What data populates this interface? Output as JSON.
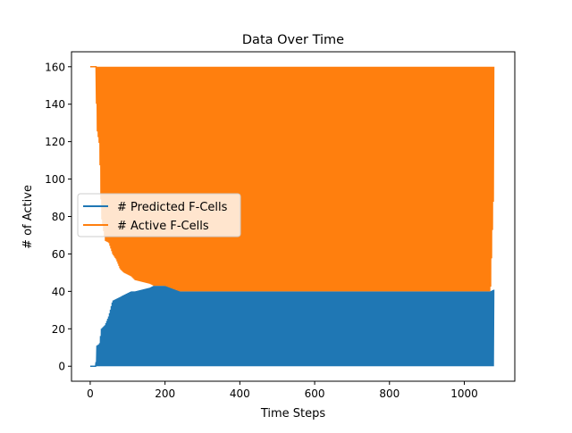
{
  "chart_data": {
    "type": "line",
    "title": "Data Over Time",
    "xlabel": "Time Steps",
    "ylabel": "# of Active",
    "xlim": [
      -50,
      1135
    ],
    "ylim": [
      -8,
      168
    ],
    "xticks": [
      0,
      200,
      400,
      600,
      800,
      1000
    ],
    "yticks": [
      0,
      20,
      40,
      60,
      80,
      100,
      120,
      140,
      160
    ],
    "legend_position": "center-left",
    "grid": false,
    "series": [
      {
        "name": "# Predicted F-Cells",
        "color": "#1f77b4",
        "description_points": {
          "x": [
            0,
            15,
            18,
            25,
            30,
            40,
            50,
            60,
            70,
            80,
            90,
            100,
            110,
            120,
            140,
            160,
            170,
            180,
            200,
            240,
            300,
            400,
            500,
            600,
            700,
            800,
            900,
            1000,
            1070,
            1080
          ],
          "y_high": [
            0,
            0,
            11,
            12,
            20,
            22,
            27,
            35,
            36,
            37,
            38,
            39,
            40,
            40,
            41,
            42,
            43,
            43,
            43,
            40,
            40,
            40,
            40,
            40,
            40,
            40,
            40,
            40,
            40,
            41
          ],
          "y_low": [
            0,
            0,
            0,
            0,
            0,
            0,
            0,
            0,
            0,
            0,
            0,
            0,
            0,
            0,
            0,
            0,
            0,
            0,
            0,
            0,
            0,
            0,
            0,
            0,
            0,
            0,
            0,
            0,
            0,
            0
          ]
        }
      },
      {
        "name": "# Active F-Cells",
        "color": "#ff7f0e",
        "description_points": {
          "x": [
            0,
            15,
            18,
            25,
            30,
            40,
            50,
            60,
            70,
            80,
            90,
            100,
            110,
            120,
            140,
            160,
            170,
            180,
            200,
            240,
            300,
            400,
            500,
            600,
            700,
            800,
            900,
            1000,
            1070,
            1080
          ],
          "y_high": [
            160,
            160,
            160,
            160,
            160,
            160,
            160,
            160,
            160,
            160,
            160,
            160,
            160,
            160,
            160,
            160,
            160,
            160,
            160,
            160,
            160,
            160,
            160,
            160,
            160,
            160,
            160,
            160,
            160,
            160
          ],
          "y_low": [
            160,
            160,
            127,
            118,
            80,
            67,
            66,
            60,
            57,
            52,
            50,
            49,
            48,
            46,
            45,
            44,
            43,
            43,
            43,
            40,
            40,
            40,
            40,
            40,
            40,
            40,
            40,
            40,
            40,
            103
          ]
        }
      }
    ]
  }
}
